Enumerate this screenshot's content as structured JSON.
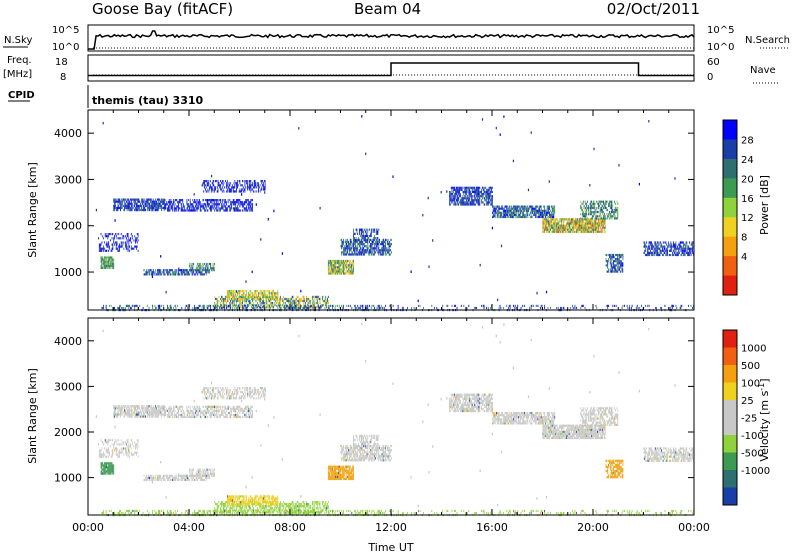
{
  "header": {
    "station": "Goose Bay (fitACF)",
    "beam": "Beam 04",
    "date": "02/Oct/2011"
  },
  "summary": {
    "nsky_label": "N.Sky",
    "nsky_ticks": [
      "10^5",
      "10^0"
    ],
    "nsearch_label": "N.Search",
    "freq_label_1": "Freq.",
    "freq_label_2": "[MHz]",
    "freq_ticks": [
      "18",
      "8"
    ],
    "nave_label": "Nave",
    "nave_ticks": [
      "60",
      "0"
    ],
    "cpid_label": "CPID",
    "cpid_value": "themis (tau) 3310"
  },
  "colors": {
    "power_scale": [
      "#0000ff",
      "#1a3ea8",
      "#2e6f6f",
      "#3c9a52",
      "#8fd23c",
      "#f0d020",
      "#f5a010",
      "#f06010",
      "#e02010"
    ],
    "velocity_scale": [
      "#1a3ea8",
      "#2e6f6f",
      "#3c9a52",
      "#8fd23c",
      "#c8c8c8",
      "#c8c8c8",
      "#f0d020",
      "#f5a010",
      "#f06010",
      "#e02010"
    ],
    "grey_scatter": "#c8c8c8"
  },
  "chart_data": [
    {
      "type": "line",
      "name_panel": "summary",
      "x_range_hours": [
        0,
        24
      ],
      "series": [
        {
          "name": "N.Sky",
          "style": "solid"
        },
        {
          "name": "N.Search",
          "style": "dotted"
        },
        {
          "name": "Freq.",
          "style": "solid",
          "x": [
            0,
            12,
            12,
            21.8,
            21.8,
            24
          ],
          "values": [
            10.5,
            10.5,
            16.2,
            16.2,
            10.5,
            10.5
          ]
        },
        {
          "name": "Nave",
          "style": "dotted"
        }
      ]
    },
    {
      "type": "heatmap",
      "name_panel": "power",
      "ylabel": "Slant Range [km]",
      "xlim": [
        0,
        24
      ],
      "ylim": [
        180,
        4500
      ],
      "yticks": [
        1000,
        2000,
        3000,
        4000
      ],
      "colorbar_label": "Power [dB]",
      "colorbar_ticks": [
        "28",
        "24",
        "20",
        "16",
        "12",
        "8",
        "4"
      ],
      "colorbar_range": [
        0,
        30
      ]
    },
    {
      "type": "heatmap",
      "name_panel": "velocity",
      "ylabel": "Slant Range [km]",
      "xlabel": "Time UT",
      "xlim": [
        0,
        24
      ],
      "ylim": [
        180,
        4500
      ],
      "xticks": [
        "00:00",
        "04:00",
        "08:00",
        "12:00",
        "16:00",
        "20:00",
        "00:00"
      ],
      "yticks": [
        1000,
        2000,
        3000,
        4000
      ],
      "colorbar_label": "Velocity [m s",
      "colorbar_label_sup": "-1",
      "colorbar_label_end": "]",
      "colorbar_ticks": [
        "1000",
        "500",
        "100",
        "25",
        "-25",
        "-100",
        "-500",
        "-1000"
      ]
    }
  ]
}
